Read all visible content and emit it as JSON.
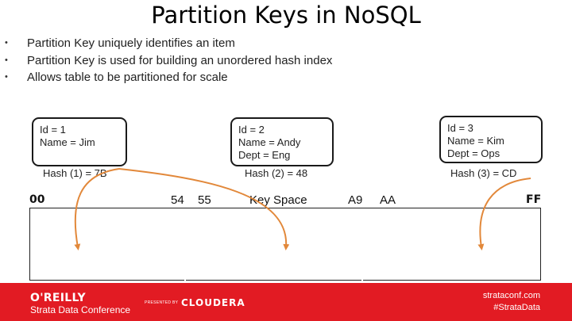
{
  "title": "Partition Keys in NoSQL",
  "bullets": [
    "Partition Key uniquely identifies an item",
    "Partition Key is used for building an unordered hash index",
    "Allows table to be partitioned for scale"
  ],
  "items": [
    {
      "lines": [
        "Id = 1",
        "Name = Jim"
      ],
      "hash": "Hash (1) = 7B"
    },
    {
      "lines": [
        "Id = 2",
        "Name = Andy",
        "Dept = Eng"
      ],
      "hash": "Hash (2) = 48"
    },
    {
      "lines": [
        "Id = 3",
        "Name = Kim",
        "Dept = Ops"
      ],
      "hash": "Hash (3) = CD"
    }
  ],
  "keyspace": {
    "start": "00",
    "split_a_end": "54",
    "split_b_start": "55",
    "label": "Key Space",
    "split_b_end": "A9",
    "split_c_start": "AA",
    "end": "FF"
  },
  "footer": {
    "brand": "O'REILLY",
    "conference": "Strata Data Conference",
    "presented_by": "PRESENTED BY",
    "sponsor": "CLOUDERA",
    "site": "strataconf.com",
    "hashtag": "#StrataData"
  },
  "colors": {
    "footer": "#e21b23",
    "arrow": "#e2883a"
  }
}
